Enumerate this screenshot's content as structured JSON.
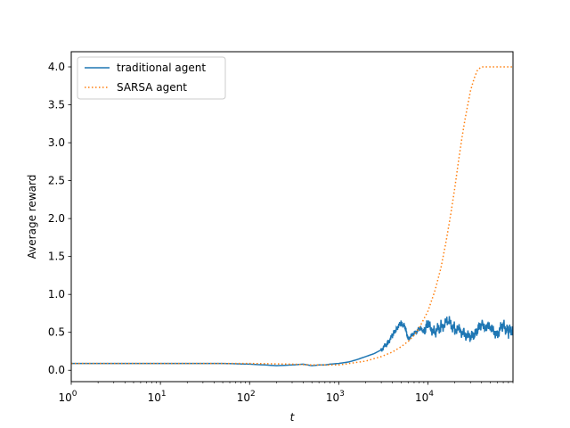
{
  "chart_data": {
    "type": "line",
    "title": "",
    "xlabel": "t",
    "ylabel": "Average reward",
    "xscale": "log",
    "xlim": [
      1,
      90000
    ],
    "ylim": [
      -0.15,
      4.2
    ],
    "grid": false,
    "legend_position": "top-left",
    "x_ticks": [
      {
        "value": 1,
        "base": "10",
        "exp": "0"
      },
      {
        "value": 10,
        "base": "10",
        "exp": "1"
      },
      {
        "value": 100,
        "base": "10",
        "exp": "2"
      },
      {
        "value": 1000,
        "base": "10",
        "exp": "3"
      },
      {
        "value": 10000,
        "base": "10",
        "exp": "4"
      }
    ],
    "y_ticks": [
      "0.0",
      "0.5",
      "1.0",
      "1.5",
      "2.0",
      "2.5",
      "3.0",
      "3.5",
      "4.0"
    ],
    "series": [
      {
        "name": "traditional agent",
        "color": "#1f77b4",
        "style": "solid",
        "x": [
          1,
          10,
          50,
          100,
          150,
          200,
          300,
          400,
          500,
          600,
          700,
          800,
          1000,
          1300,
          1600,
          2000,
          2500,
          3000,
          3500,
          4000,
          4500,
          5000,
          5500,
          6000,
          7000,
          8000,
          9000,
          10000,
          12000,
          14000,
          17000,
          20000,
          25000,
          30000,
          35000,
          40000,
          50000,
          60000,
          70000,
          80000,
          90000
        ],
        "y": [
          0.09,
          0.09,
          0.09,
          0.08,
          0.07,
          0.06,
          0.07,
          0.08,
          0.06,
          0.07,
          0.07,
          0.08,
          0.09,
          0.11,
          0.14,
          0.18,
          0.22,
          0.27,
          0.35,
          0.46,
          0.56,
          0.62,
          0.58,
          0.42,
          0.48,
          0.55,
          0.52,
          0.6,
          0.5,
          0.58,
          0.64,
          0.55,
          0.5,
          0.42,
          0.52,
          0.6,
          0.55,
          0.48,
          0.6,
          0.5,
          0.55
        ]
      },
      {
        "name": "SARSA agent",
        "color": "#ff7f0e",
        "style": "dotted",
        "x": [
          1,
          10,
          100,
          300,
          500,
          1000,
          2000,
          3000,
          4000,
          5000,
          6000,
          7000,
          8000,
          10000,
          12000,
          14000,
          16000,
          18000,
          20000,
          22000,
          24000,
          26000,
          28000,
          30000,
          33000,
          36000,
          40000,
          50000,
          60000,
          70000,
          80000,
          90000
        ],
        "y": [
          0.09,
          0.09,
          0.09,
          0.08,
          0.07,
          0.07,
          0.12,
          0.18,
          0.24,
          0.31,
          0.38,
          0.46,
          0.56,
          0.78,
          1.05,
          1.35,
          1.7,
          2.05,
          2.4,
          2.75,
          3.05,
          3.3,
          3.5,
          3.68,
          3.85,
          3.96,
          4.0,
          4.0,
          4.0,
          4.0,
          4.0,
          4.0
        ]
      }
    ]
  }
}
